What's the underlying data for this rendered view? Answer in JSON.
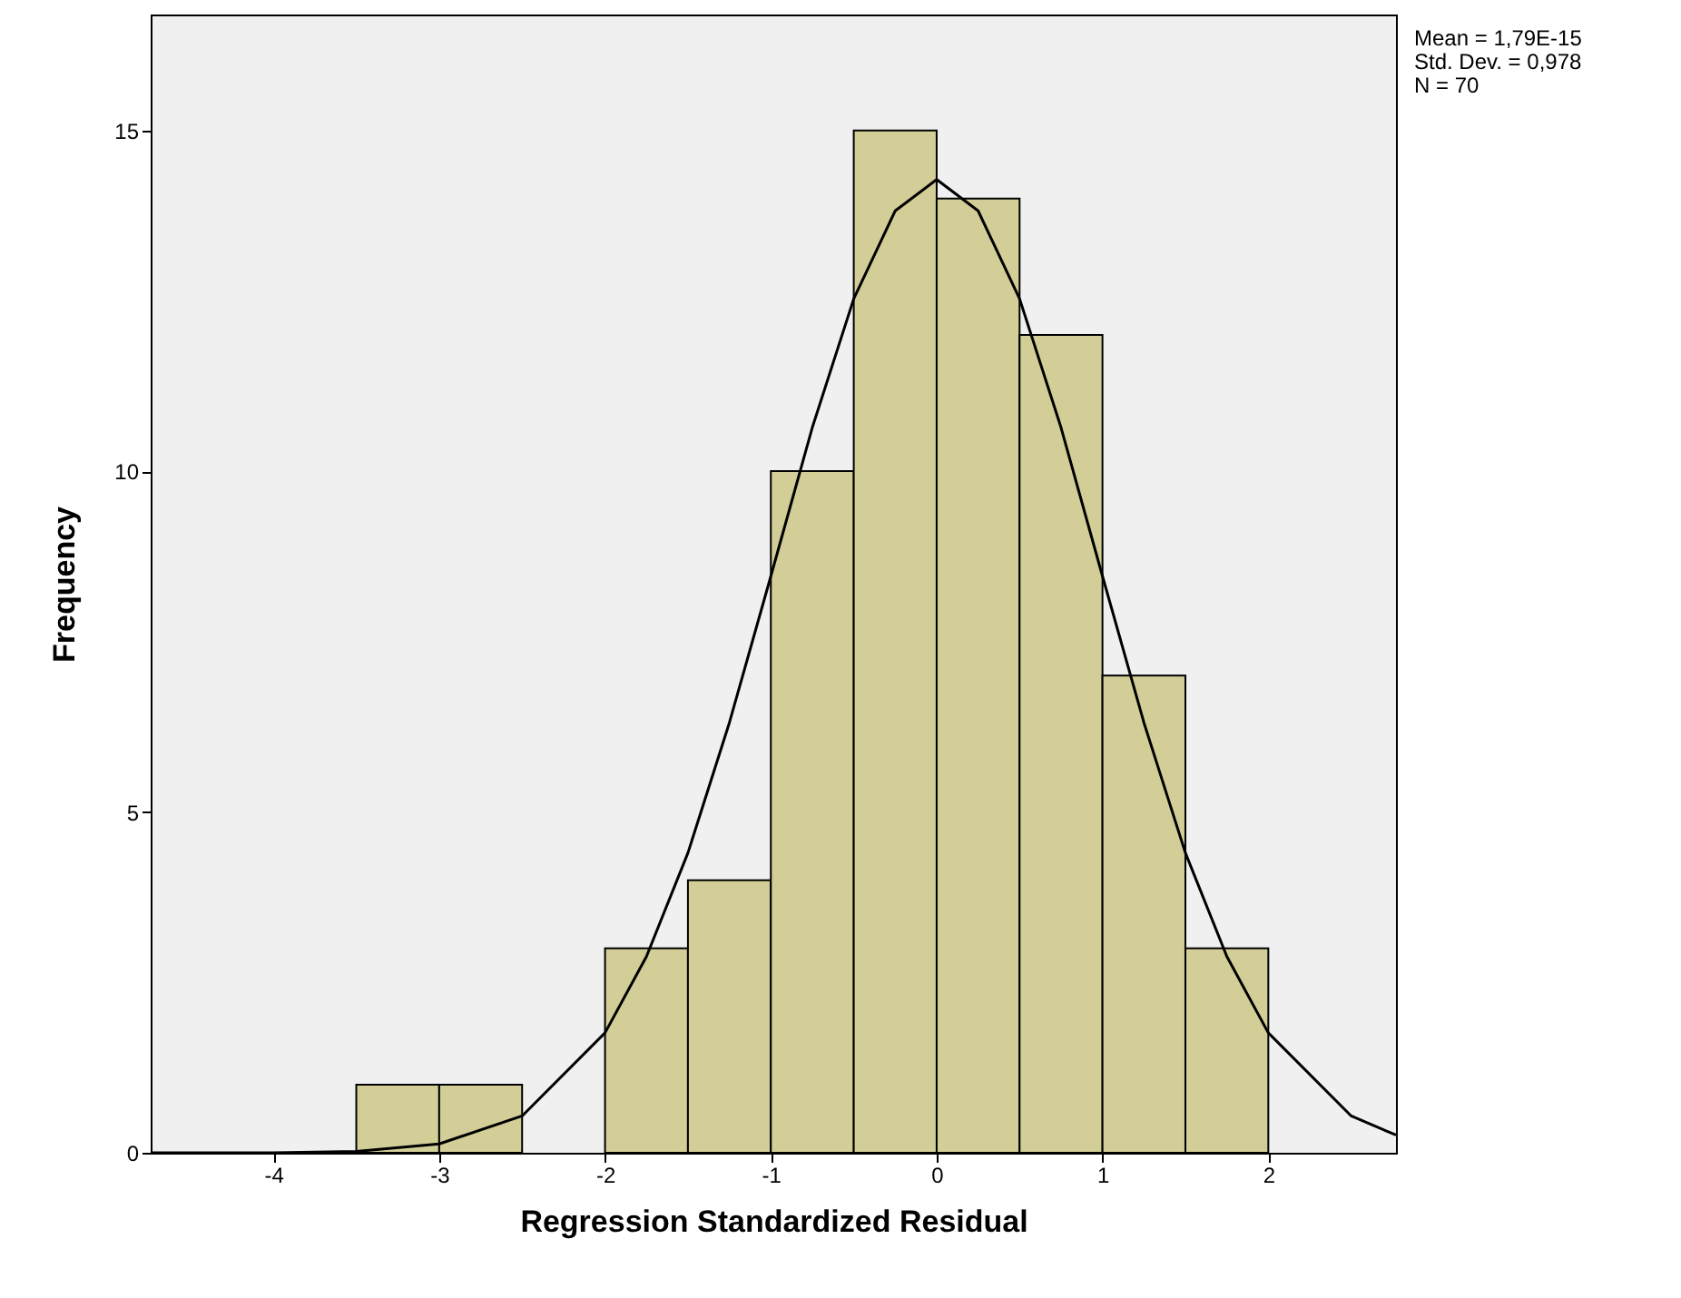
{
  "chart_data": {
    "type": "histogram",
    "xlabel": "Regression Standardized Residual",
    "ylabel": "Frequency",
    "bins": [
      -3.5,
      -3,
      -2.5,
      -2,
      -1.5,
      -1,
      -0.5,
      0,
      0.5,
      1,
      1.5,
      2
    ],
    "values": [
      1,
      1,
      0,
      3,
      4,
      10,
      15,
      14,
      12,
      7,
      3
    ],
    "color": "#d3ce97",
    "series": [
      {
        "type": "line",
        "color": "#000000",
        "x": [
          -4.74,
          -4.5,
          -4,
          -3.5,
          -3,
          -2.5,
          -2,
          -1.75,
          -1.5,
          -1.25,
          -1,
          -0.75,
          -0.5,
          -0.25,
          0,
          0.25,
          0.5,
          0.75,
          1,
          1.25,
          1.5,
          1.75,
          2,
          2.5,
          2.77
        ],
        "values": [
          0,
          0,
          0,
          0.02,
          0.13,
          0.54,
          1.76,
          2.88,
          4.4,
          6.31,
          8.46,
          10.64,
          12.53,
          13.82,
          14.28,
          13.82,
          12.53,
          10.64,
          8.46,
          6.31,
          4.4,
          2.88,
          1.76,
          0.54,
          0.26
        ]
      }
    ],
    "xlim": [
      -4.74,
      2.77
    ],
    "xticks": [
      -4,
      -3,
      -2,
      -1,
      0,
      1,
      2
    ],
    "ylim": [
      0,
      16.7
    ],
    "yticks": [
      0,
      5,
      10,
      15
    ],
    "annotations": [
      "Mean = 1,79E-15",
      "Std. Dev. = 0,978",
      "N = 70"
    ]
  }
}
